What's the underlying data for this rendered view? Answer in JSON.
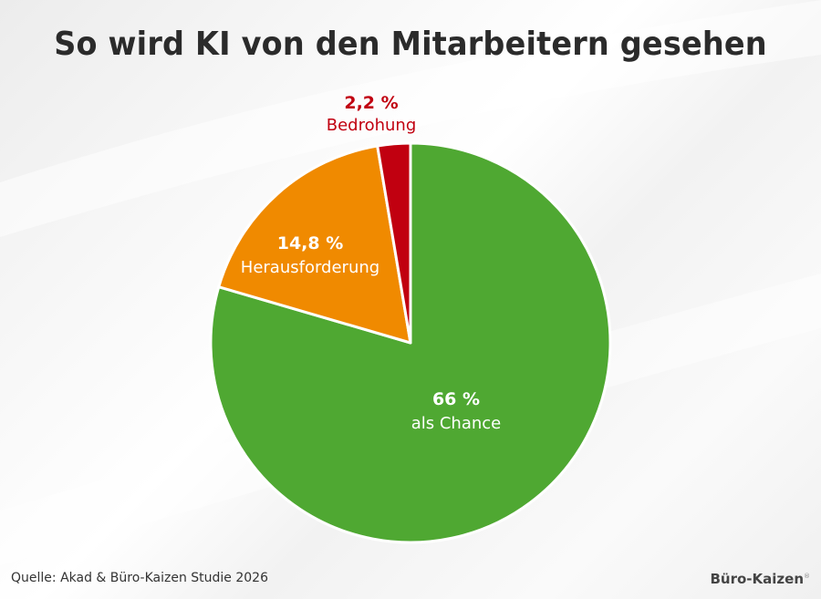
{
  "chart_data": {
    "type": "pie",
    "title": "So wird KI von den Mitarbeitern gesehen",
    "slices": [
      {
        "value_label": "66 %",
        "label": "als Chance",
        "value": 66,
        "color": "#4fa832",
        "label_color": "#ffffff"
      },
      {
        "value_label": "14,8 %",
        "label": "Herausforderung",
        "value": 14.8,
        "color": "#f08a00",
        "label_color": "#ffffff"
      },
      {
        "value_label": "2,2 %",
        "label": "Bedrohung",
        "value": 2.2,
        "color": "#c10010",
        "label_color": "#c10010"
      }
    ],
    "start": "top",
    "direction": "counterclockwise-from-top-for-small-slices"
  },
  "footer": {
    "source": "Quelle: Akad & Büro-Kaizen Studie 2026",
    "brand": "Büro-Kaizen",
    "brand_mark": "®"
  }
}
